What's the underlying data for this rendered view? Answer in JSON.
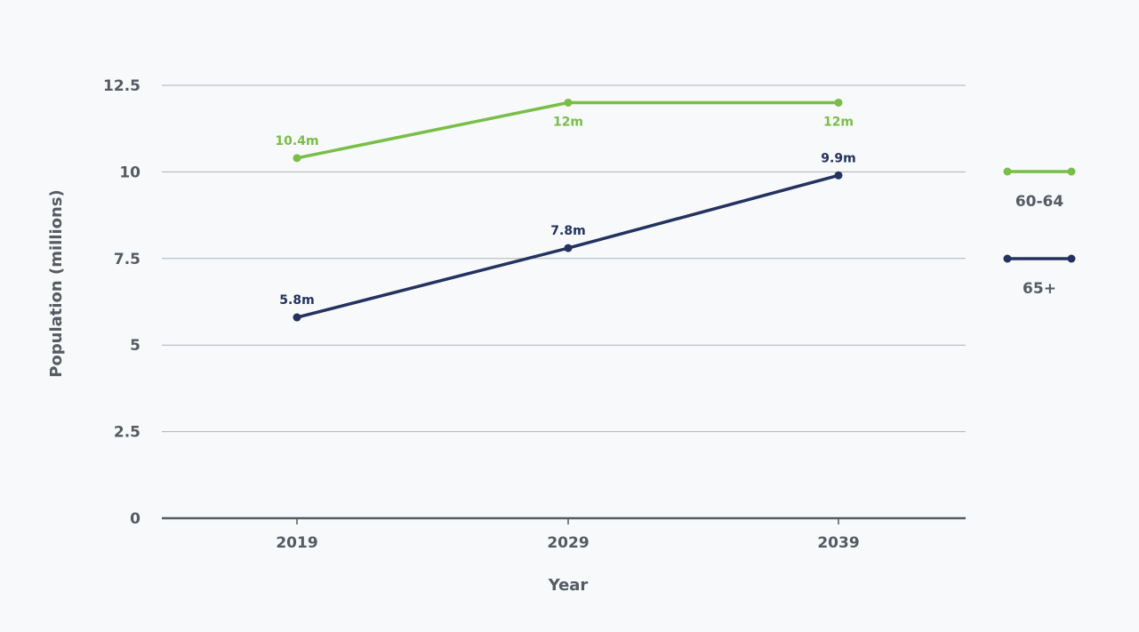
{
  "chart_data": {
    "type": "line",
    "title": "",
    "xlabel": "Year",
    "ylabel": "Population (millions)",
    "x": [
      "2019",
      "2029",
      "2039"
    ],
    "y_ticks": [
      "0",
      "2.5",
      "5",
      "7.5",
      "10",
      "12.5"
    ],
    "ylim": [
      0,
      12.5
    ],
    "grid": true,
    "legend_position": "right",
    "series": [
      {
        "name": "60-64",
        "color": "#79be47",
        "values": [
          10.4,
          12,
          12
        ],
        "labels": [
          "10.4m",
          "12m",
          "12m"
        ]
      },
      {
        "name": "65+",
        "color": "#23325f",
        "values": [
          5.8,
          7.8,
          9.9
        ],
        "labels": [
          "5.8m",
          "7.8m",
          "9.9m"
        ]
      }
    ]
  }
}
